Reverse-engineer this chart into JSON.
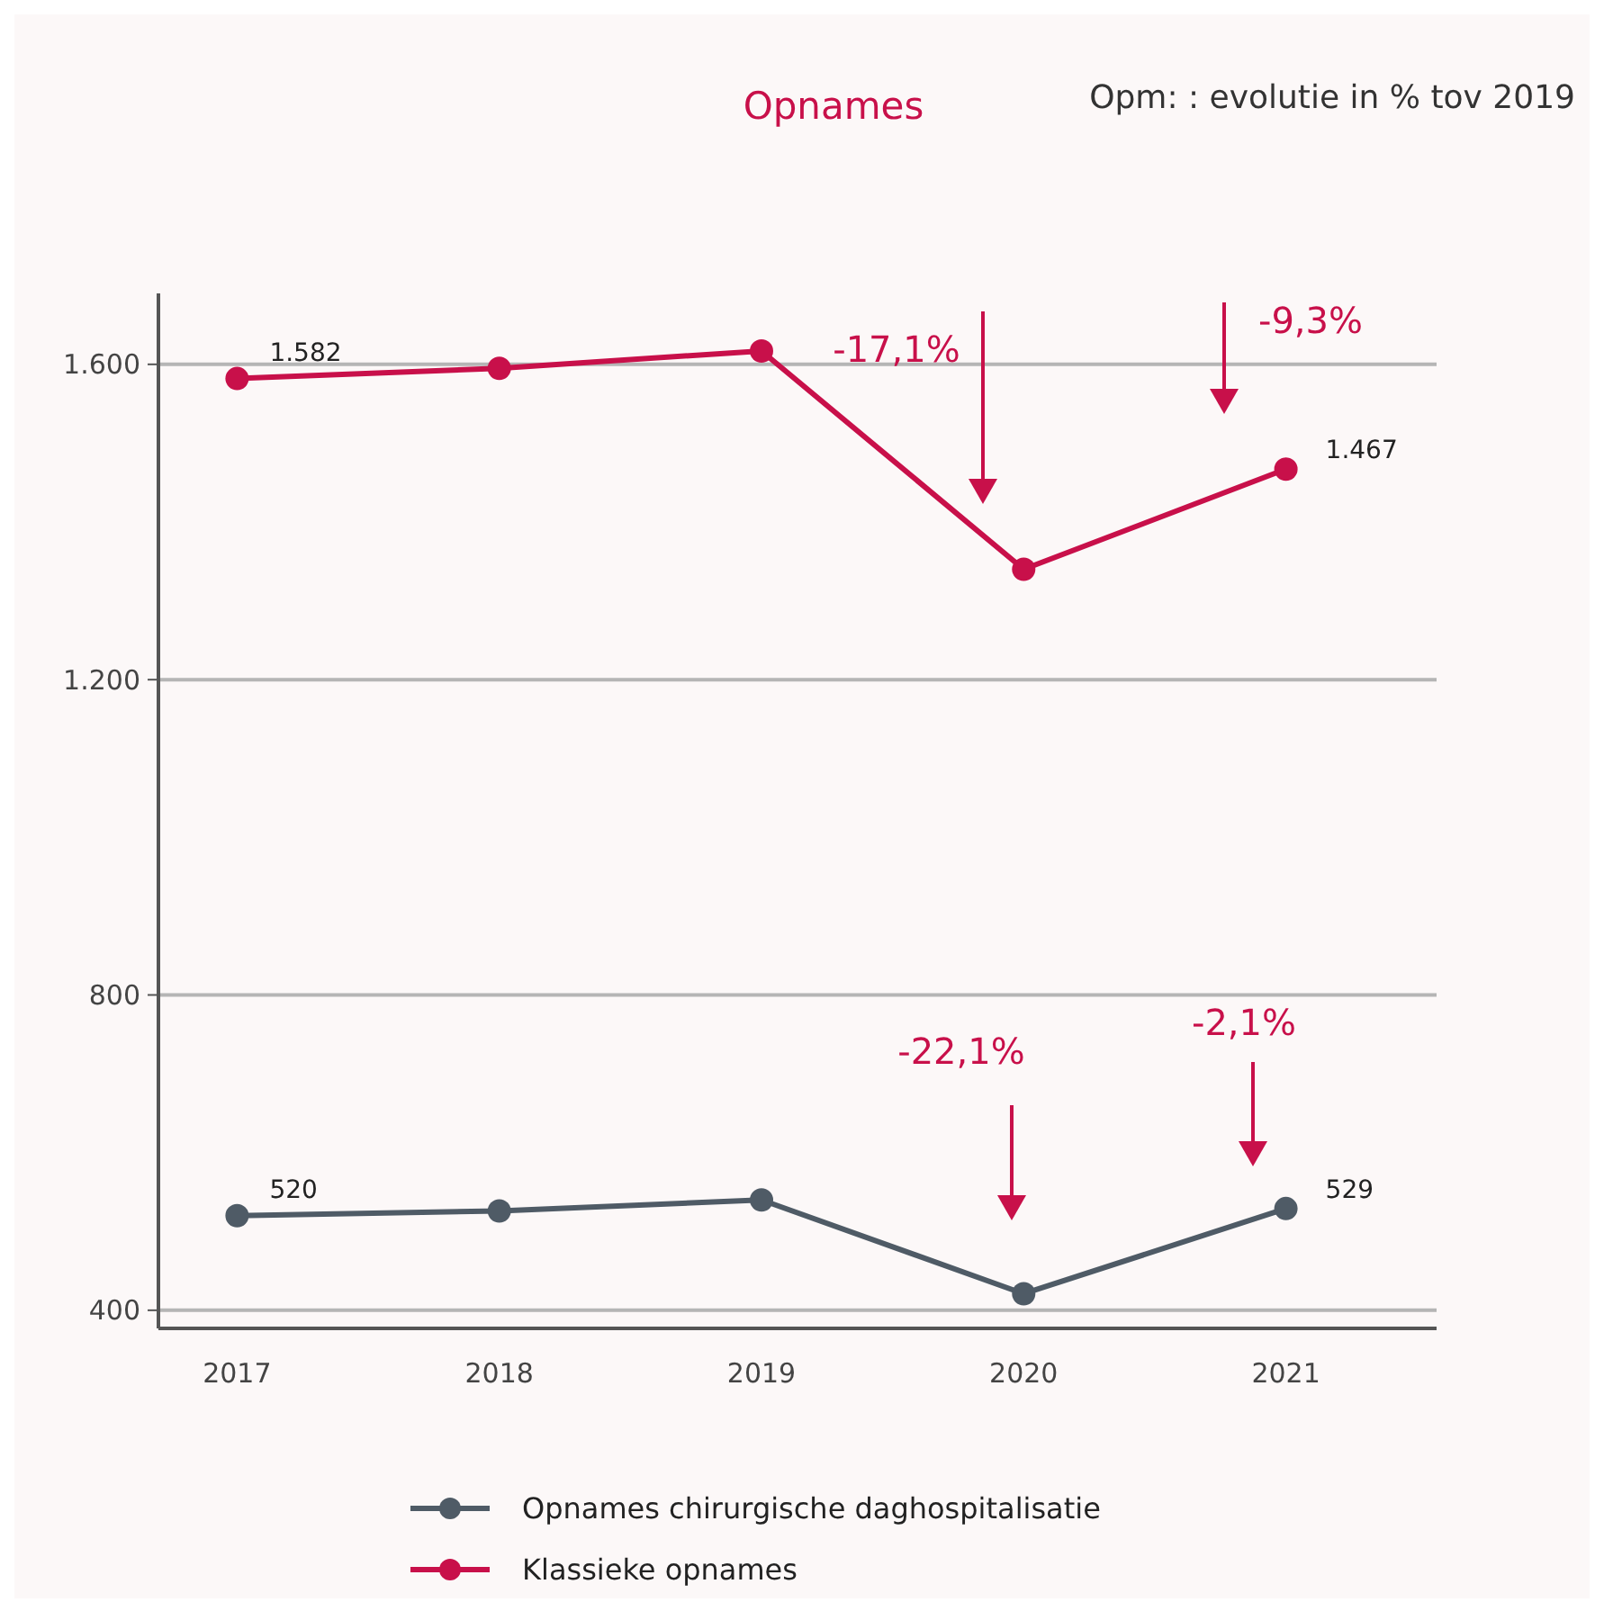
{
  "chart_data": {
    "type": "line",
    "title": "Opnames",
    "categories": [
      "2017",
      "2018",
      "2019",
      "2020",
      "2021"
    ],
    "series": [
      {
        "name": "Opnames chirurgische daghospitalisatie",
        "color": "#4f5b66",
        "values": [
          520,
          526,
          540,
          421,
          529
        ],
        "value_labels": [
          "520",
          null,
          null,
          null,
          "529"
        ]
      },
      {
        "name": "Klassieke opnames",
        "color": "#c8104a",
        "values": [
          1582,
          1595,
          1617,
          1340,
          1467
        ],
        "value_labels": [
          "1.582",
          null,
          null,
          null,
          "1.467"
        ]
      }
    ],
    "ylim": [
      377,
      1690
    ],
    "yticks": [
      400,
      800,
      {
        "value": 1200,
        "label": "1.200"
      },
      {
        "value": 1600,
        "label": "1.600"
      }
    ],
    "grid": "y",
    "marker": "circle",
    "legend": "bottom",
    "annotations": [
      "Opm: : evolutie in % tov 2019",
      "-17,1%",
      "-9,3%",
      "-22,1%",
      "-2,1%"
    ]
  }
}
